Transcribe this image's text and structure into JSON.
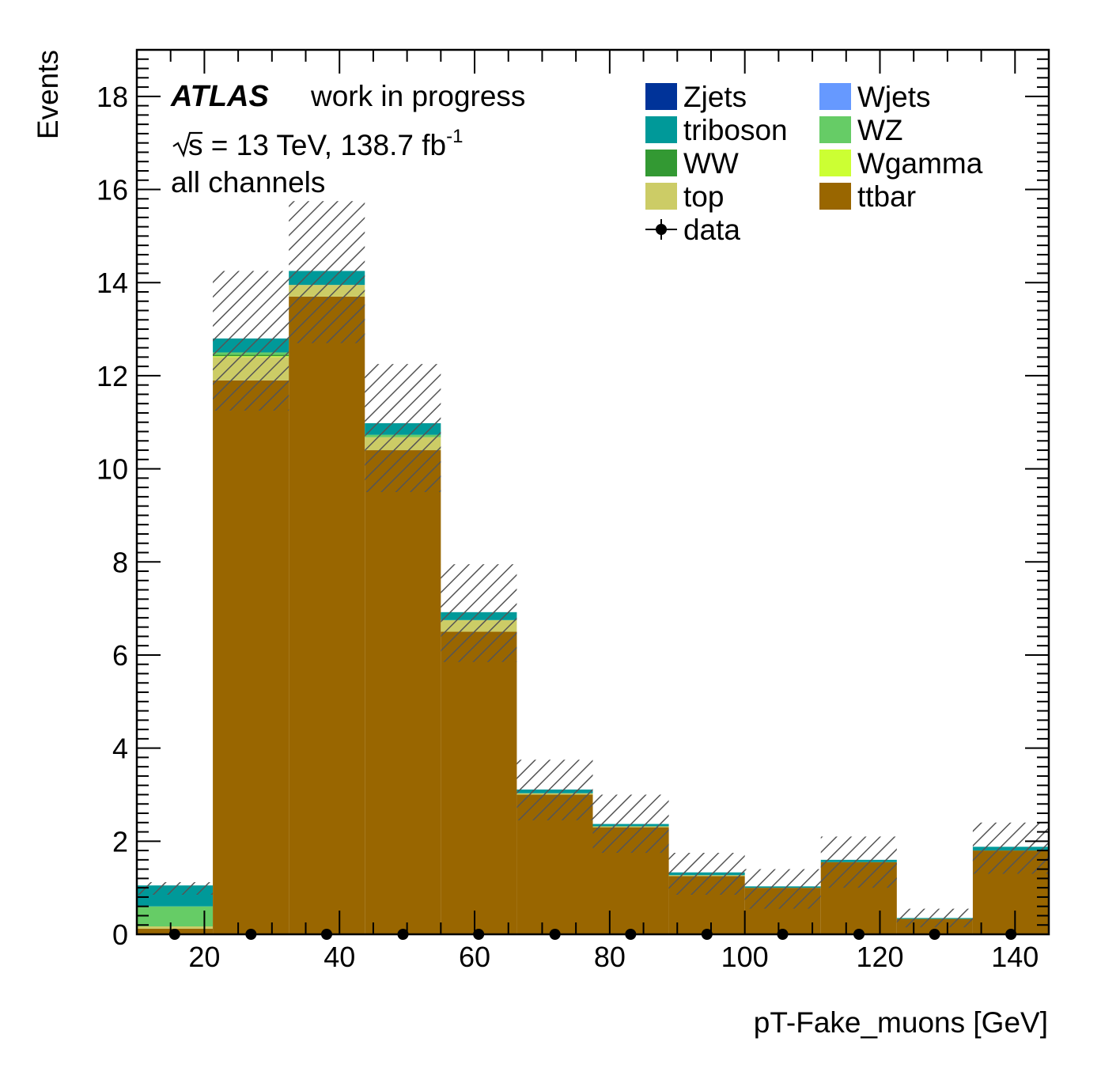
{
  "chart_data": {
    "type": "bar",
    "stacked": true,
    "title": "",
    "xlabel": "pT-Fake_muons [GeV]",
    "ylabel": "Events",
    "xlim": [
      10,
      145
    ],
    "ylim": [
      0,
      19
    ],
    "x_ticks": [
      "20",
      "40",
      "60",
      "80",
      "100",
      "120",
      "140"
    ],
    "y_ticks": [
      "0",
      "2",
      "4",
      "6",
      "8",
      "10",
      "12",
      "14",
      "16",
      "18"
    ],
    "bin_edges": [
      10,
      21.25,
      32.5,
      43.75,
      55,
      66.25,
      77.5,
      88.75,
      100,
      111.25,
      122.5,
      133.75,
      145
    ],
    "series": [
      {
        "name": "ttbar",
        "color": "#996600",
        "values": [
          0.12,
          11.9,
          13.7,
          10.4,
          6.5,
          3.0,
          2.3,
          1.25,
          1.0,
          1.55,
          0.33,
          1.8
        ]
      },
      {
        "name": "top",
        "color": "#cccc66",
        "values": [
          0.05,
          0.5,
          0.25,
          0.28,
          0.25,
          0.03,
          0.02,
          0.02,
          0.0,
          0.0,
          0.0,
          0.0
        ]
      },
      {
        "name": "Wgamma",
        "color": "#ccff33",
        "values": [
          0.0,
          0.02,
          0.0,
          0.0,
          0.0,
          0.0,
          0.0,
          0.0,
          0.0,
          0.0,
          0.0,
          0.0
        ]
      },
      {
        "name": "WW",
        "color": "#339933",
        "values": [
          0.0,
          0.03,
          0.0,
          0.0,
          0.0,
          0.0,
          0.0,
          0.0,
          0.0,
          0.0,
          0.0,
          0.0
        ]
      },
      {
        "name": "WZ",
        "color": "#66cc66",
        "values": [
          0.43,
          0.05,
          0.0,
          0.05,
          0.0,
          0.0,
          0.0,
          0.0,
          0.0,
          0.0,
          0.0,
          0.0
        ]
      },
      {
        "name": "triboson",
        "color": "#009999",
        "values": [
          0.45,
          0.3,
          0.3,
          0.25,
          0.17,
          0.08,
          0.05,
          0.06,
          0.03,
          0.05,
          0.02,
          0.08
        ]
      },
      {
        "name": "Wjets",
        "color": "#6699ff",
        "values": [
          0.0,
          0.0,
          0.0,
          0.0,
          0.0,
          0.0,
          0.0,
          0.0,
          0.0,
          0.0,
          0.0,
          0.0
        ]
      },
      {
        "name": "Zjets",
        "color": "#003399",
        "values": [
          0.0,
          0.0,
          0.0,
          0.0,
          0.0,
          0.0,
          0.0,
          0.0,
          0.0,
          0.0,
          0.0,
          0.0
        ]
      }
    ],
    "uncertainty": {
      "lower": [
        0.85,
        11.25,
        12.7,
        9.5,
        5.85,
        2.45,
        1.75,
        0.85,
        0.55,
        1.0,
        0.15,
        1.3
      ],
      "upper": [
        1.12,
        14.25,
        15.75,
        12.25,
        7.95,
        3.75,
        3.0,
        1.75,
        1.4,
        2.1,
        0.55,
        2.4
      ]
    },
    "data": {
      "name": "data",
      "x": [
        15.6,
        26.9,
        38.1,
        49.4,
        60.6,
        71.9,
        83.1,
        94.4,
        105.6,
        116.9,
        128.1,
        139.4
      ],
      "y": [
        0,
        0,
        0,
        0,
        0,
        0,
        0,
        0,
        0,
        0,
        0,
        0
      ]
    },
    "legend_order": [
      "Zjets",
      "Wjets",
      "triboson",
      "WZ",
      "WW",
      "Wgamma",
      "top",
      "ttbar",
      "data"
    ],
    "legend_position": "top-right",
    "grid": false
  },
  "annotations": {
    "atlas": "ATLAS",
    "status": "work in progress",
    "energy_prefix": "s = 13 TeV, 138.7 fb",
    "energy_sup": "-1",
    "channel": "all channels"
  }
}
